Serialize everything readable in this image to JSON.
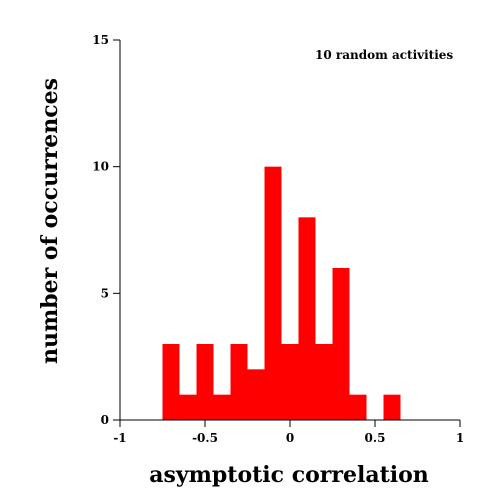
{
  "chart_data": {
    "type": "bar",
    "subtype": "histogram",
    "bar_color": "#ff0000",
    "bin_width": 0.1,
    "bins": [
      {
        "x0": -0.75,
        "x1": -0.65,
        "count": 3
      },
      {
        "x0": -0.65,
        "x1": -0.55,
        "count": 1
      },
      {
        "x0": -0.55,
        "x1": -0.45,
        "count": 3
      },
      {
        "x0": -0.45,
        "x1": -0.35,
        "count": 1
      },
      {
        "x0": -0.35,
        "x1": -0.25,
        "count": 3
      },
      {
        "x0": -0.25,
        "x1": -0.15,
        "count": 2
      },
      {
        "x0": -0.15,
        "x1": -0.05,
        "count": 10
      },
      {
        "x0": -0.05,
        "x1": 0.05,
        "count": 3
      },
      {
        "x0": 0.05,
        "x1": 0.15,
        "count": 8
      },
      {
        "x0": 0.15,
        "x1": 0.25,
        "count": 3
      },
      {
        "x0": 0.25,
        "x1": 0.35,
        "count": 6
      },
      {
        "x0": 0.35,
        "x1": 0.45,
        "count": 1
      },
      {
        "x0": 0.45,
        "x1": 0.55,
        "count": 0
      },
      {
        "x0": 0.55,
        "x1": 0.65,
        "count": 1
      }
    ],
    "xlabel": "asymptotic correlation",
    "ylabel": "number of occurrences",
    "annotation": "10 random activities",
    "xlim": [
      -1,
      1
    ],
    "ylim": [
      0,
      15
    ],
    "xticks": [
      -1,
      -0.5,
      0,
      0.5,
      1
    ],
    "xtick_labels": [
      "-1",
      "-0.5",
      "0",
      "0.5",
      "1"
    ],
    "yticks": [
      0,
      5,
      10,
      15
    ],
    "ytick_labels": [
      "0",
      "5",
      "10",
      "15"
    ],
    "grid": false,
    "legend": "none"
  }
}
